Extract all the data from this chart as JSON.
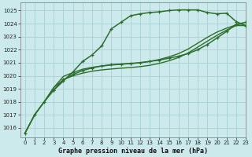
{
  "title": "Graphe pression niveau de la mer (hPa)",
  "background_color": "#cce9eb",
  "grid_color": "#aad0d4",
  "line_color": "#2d6e2d",
  "xlim": [
    -0.5,
    23
  ],
  "ylim": [
    1015.3,
    1025.6
  ],
  "yticks": [
    1016,
    1017,
    1018,
    1019,
    1020,
    1021,
    1022,
    1023,
    1024,
    1025
  ],
  "xticks": [
    0,
    1,
    2,
    3,
    4,
    5,
    6,
    7,
    8,
    9,
    10,
    11,
    12,
    13,
    14,
    15,
    16,
    17,
    18,
    19,
    20,
    21,
    22,
    23
  ],
  "series": [
    {
      "x": [
        0,
        1,
        2,
        3,
        4,
        5,
        6,
        7,
        8,
        9,
        10,
        11,
        12,
        13,
        14,
        15,
        16,
        17,
        18,
        19,
        20,
        21,
        22,
        23
      ],
      "y": [
        1015.6,
        1017.0,
        1018.0,
        1018.9,
        1019.6,
        1020.3,
        1021.1,
        1021.6,
        1022.3,
        1023.6,
        1024.1,
        1024.6,
        1024.75,
        1024.85,
        1024.9,
        1025.0,
        1025.05,
        1025.05,
        1025.05,
        1024.85,
        1024.75,
        1024.8,
        1024.15,
        1023.85
      ],
      "marker": "+",
      "lw": 1.1
    },
    {
      "x": [
        3,
        4,
        5,
        6,
        7,
        8,
        9,
        10,
        11,
        12,
        13,
        14,
        15,
        16,
        17,
        18,
        19,
        20,
        21,
        22,
        23
      ],
      "y": [
        1018.9,
        1019.7,
        1020.1,
        1020.4,
        1020.6,
        1020.75,
        1020.85,
        1020.9,
        1020.95,
        1021.0,
        1021.1,
        1021.2,
        1021.35,
        1021.5,
        1021.7,
        1022.0,
        1022.4,
        1022.9,
        1023.4,
        1023.95,
        1024.1
      ],
      "marker": "+",
      "lw": 1.1
    },
    {
      "x": [
        0,
        1,
        2,
        3,
        4,
        5,
        6,
        7,
        8,
        9,
        10,
        11,
        12,
        13,
        14,
        15,
        16,
        17,
        18,
        19,
        20,
        21,
        22,
        23
      ],
      "y": [
        1015.6,
        1017.0,
        1018.0,
        1019.1,
        1019.7,
        1020.0,
        1020.2,
        1020.35,
        1020.45,
        1020.52,
        1020.58,
        1020.63,
        1020.7,
        1020.8,
        1020.95,
        1021.15,
        1021.4,
        1021.75,
        1022.2,
        1022.65,
        1023.1,
        1023.5,
        1023.85,
        1023.85
      ],
      "marker": null,
      "lw": 1.0
    },
    {
      "x": [
        0,
        1,
        2,
        3,
        4,
        5,
        6,
        7,
        8,
        9,
        10,
        11,
        12,
        13,
        14,
        15,
        16,
        17,
        18,
        19,
        20,
        21,
        22,
        23
      ],
      "y": [
        1015.6,
        1017.0,
        1018.0,
        1019.1,
        1019.95,
        1020.25,
        1020.5,
        1020.65,
        1020.75,
        1020.82,
        1020.88,
        1020.93,
        1021.0,
        1021.1,
        1021.25,
        1021.45,
        1021.7,
        1022.05,
        1022.5,
        1022.95,
        1023.35,
        1023.65,
        1023.9,
        1023.85
      ],
      "marker": null,
      "lw": 1.0
    }
  ]
}
